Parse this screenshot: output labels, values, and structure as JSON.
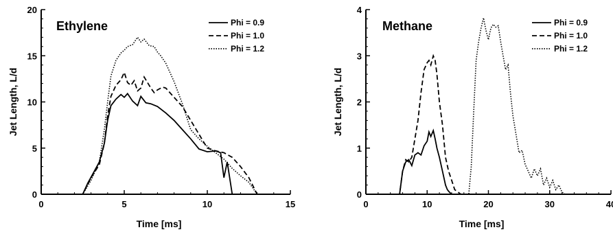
{
  "chart_data": [
    {
      "type": "line",
      "title": "Ethylene",
      "xlabel": "Time [ms]",
      "ylabel": "Jet Length, L/d",
      "xlim": [
        0,
        15
      ],
      "ylim": [
        0,
        20
      ],
      "xticks": [
        0,
        5,
        10,
        15
      ],
      "yticks": [
        0,
        5,
        10,
        15,
        20
      ],
      "grid": false,
      "legend_position": "top-right",
      "series": [
        {
          "name": "Phi = 0.9",
          "style": "solid",
          "x": [
            0,
            2.5,
            2.8,
            3.2,
            3.5,
            3.8,
            4.0,
            4.2,
            4.5,
            4.8,
            5.0,
            5.2,
            5.5,
            5.8,
            6.0,
            6.3,
            6.6,
            7.0,
            7.5,
            8.0,
            8.5,
            9.0,
            9.5,
            10.0,
            10.5,
            10.8,
            11.0,
            11.2,
            11.5,
            15
          ],
          "y": [
            0,
            0,
            1.2,
            2.5,
            3.5,
            5.5,
            8.0,
            9.6,
            10.3,
            10.8,
            10.5,
            10.9,
            10.1,
            9.6,
            10.6,
            9.9,
            9.8,
            9.5,
            8.8,
            8.0,
            7.0,
            6.0,
            4.9,
            4.6,
            4.7,
            4.5,
            1.8,
            3.5,
            0,
            0
          ]
        },
        {
          "name": "Phi = 1.0",
          "style": "dashed",
          "x": [
            0,
            2.5,
            3.0,
            3.5,
            3.8,
            4.0,
            4.2,
            4.5,
            4.8,
            5.0,
            5.2,
            5.4,
            5.6,
            5.8,
            6.0,
            6.2,
            6.4,
            6.6,
            6.8,
            7.0,
            7.3,
            7.5,
            8.0,
            8.5,
            9.0,
            9.5,
            10.0,
            10.5,
            11.0,
            11.5,
            12.0,
            12.5,
            13.0,
            15
          ],
          "y": [
            0,
            0,
            1.8,
            3.2,
            5.5,
            8.5,
            10.6,
            11.8,
            12.4,
            13.2,
            12.1,
            11.8,
            12.3,
            11.2,
            11.5,
            12.7,
            12.1,
            11.5,
            11.0,
            11.3,
            11.6,
            11.5,
            10.5,
            9.5,
            8.0,
            6.5,
            5.0,
            4.7,
            4.5,
            4.0,
            3.0,
            1.8,
            0,
            0
          ]
        },
        {
          "name": "Phi = 1.2",
          "style": "dotted",
          "x": [
            0,
            2.5,
            3.0,
            3.5,
            3.8,
            4.0,
            4.2,
            4.5,
            4.8,
            5.0,
            5.2,
            5.5,
            5.8,
            6.0,
            6.2,
            6.5,
            6.8,
            7.0,
            7.2,
            7.5,
            8.0,
            8.5,
            9.0,
            9.5,
            10.0,
            10.5,
            11.0,
            11.5,
            12.0,
            12.5,
            13.0,
            15
          ],
          "y": [
            0,
            0,
            1.5,
            3.5,
            7.0,
            10.0,
            12.8,
            14.5,
            15.3,
            15.6,
            16.0,
            16.2,
            17.0,
            16.5,
            16.8,
            16.1,
            16.0,
            15.4,
            15.0,
            14.2,
            12.2,
            9.8,
            7.0,
            6.0,
            5.2,
            4.5,
            3.8,
            2.8,
            2.0,
            1.3,
            0,
            0
          ]
        }
      ]
    },
    {
      "type": "line",
      "title": "Methane",
      "xlabel": "Time [ms]",
      "ylabel": "Jet Length, L/d",
      "xlim": [
        0,
        40
      ],
      "ylim": [
        0,
        4
      ],
      "xticks": [
        0,
        10,
        20,
        30,
        40
      ],
      "yticks": [
        0,
        1,
        2,
        3,
        4
      ],
      "grid": false,
      "legend_position": "top-right",
      "series": [
        {
          "name": "Phi = 0.9",
          "style": "solid",
          "x": [
            0,
            5.5,
            6.0,
            6.5,
            7.0,
            7.5,
            8.0,
            8.5,
            9.0,
            9.5,
            10.0,
            10.3,
            10.6,
            11.0,
            11.3,
            11.6,
            12.0,
            12.5,
            13.0,
            13.3,
            13.6,
            14.0,
            40
          ],
          "y": [
            0,
            0,
            0.5,
            0.7,
            0.75,
            0.62,
            0.85,
            0.9,
            0.85,
            1.05,
            1.15,
            1.35,
            1.25,
            1.38,
            1.2,
            1.0,
            0.8,
            0.5,
            0.2,
            0.1,
            0.05,
            0,
            0
          ]
        },
        {
          "name": "Phi = 1.0",
          "style": "dashed",
          "x": [
            0,
            5.5,
            6.0,
            6.5,
            7.0,
            7.5,
            8.0,
            8.5,
            9.0,
            9.5,
            10.0,
            10.3,
            10.6,
            11.0,
            11.3,
            11.6,
            12.0,
            12.5,
            13.0,
            13.5,
            14.0,
            14.5,
            15.0,
            15.5,
            40
          ],
          "y": [
            0,
            0,
            0.5,
            0.75,
            0.7,
            0.8,
            1.2,
            1.6,
            2.2,
            2.7,
            2.85,
            2.9,
            2.8,
            3.0,
            2.9,
            2.6,
            2.0,
            1.5,
            0.8,
            0.5,
            0.3,
            0.1,
            0.05,
            0,
            0
          ]
        },
        {
          "name": "Phi = 1.2",
          "style": "dotted",
          "x": [
            0,
            16.8,
            17.2,
            17.6,
            18.0,
            18.4,
            18.8,
            19.2,
            19.6,
            20.0,
            20.4,
            20.8,
            21.2,
            21.6,
            22.0,
            22.4,
            22.8,
            23.2,
            23.6,
            24.0,
            24.5,
            25.0,
            25.5,
            26.0,
            26.5,
            27.0,
            27.5,
            28.0,
            28.5,
            29.0,
            29.5,
            30.0,
            30.5,
            31.0,
            31.5,
            32.0,
            32.5,
            40
          ],
          "y": [
            0,
            0,
            0.6,
            1.8,
            2.9,
            3.3,
            3.6,
            3.82,
            3.55,
            3.35,
            3.6,
            3.68,
            3.62,
            3.65,
            3.3,
            3.0,
            2.7,
            2.8,
            2.2,
            1.7,
            1.3,
            0.9,
            0.95,
            0.65,
            0.5,
            0.35,
            0.55,
            0.4,
            0.55,
            0.2,
            0.35,
            0.15,
            0.3,
            0.1,
            0.2,
            0.05,
            0,
            0
          ]
        }
      ]
    }
  ]
}
